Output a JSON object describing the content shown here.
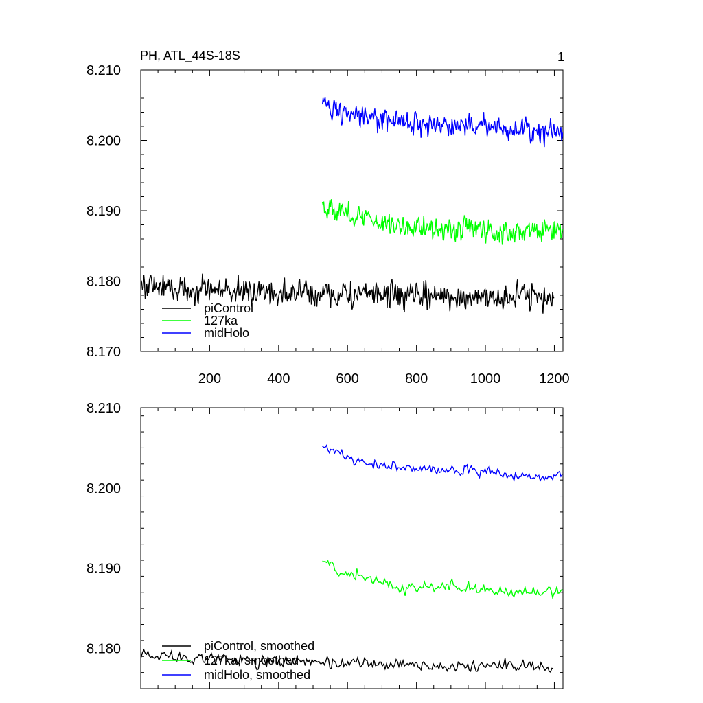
{
  "figure": {
    "title": "PH, ATL_44S-18S",
    "panel_number": "1"
  },
  "chart_data": [
    {
      "type": "line",
      "title": "PH, ATL_44S-18S",
      "xlabel": "",
      "ylabel": "",
      "xlim": [
        0,
        1225
      ],
      "ylim": [
        8.17,
        8.21
      ],
      "x_ticks": [
        200,
        400,
        600,
        800,
        1000,
        1200
      ],
      "y_ticks": [
        8.17,
        8.18,
        8.19,
        8.2,
        8.21
      ],
      "y_tick_labels": [
        "8.170",
        "8.180",
        "8.190",
        "8.200",
        "8.210"
      ],
      "x_tick_labels": [
        "200",
        "400",
        "600",
        "800",
        "1000",
        "1200"
      ],
      "legend_position": "bottom-left",
      "series": [
        {
          "name": "piControl",
          "color": "#000000",
          "x_start": 1,
          "x_end": 1200,
          "step": 2,
          "anchors_x": [
            1,
            100,
            300,
            500,
            700,
            900,
            1100,
            1200
          ],
          "anchors_y": [
            8.1795,
            8.179,
            8.1785,
            8.1782,
            8.178,
            8.1778,
            8.1778,
            8.1777
          ],
          "noise": 0.0013
        },
        {
          "name": "127ka",
          "color": "#00ff00",
          "x_start": 527,
          "x_end": 1225,
          "step": 2,
          "anchors_x": [
            527,
            560,
            650,
            750,
            900,
            1000,
            1100,
            1225
          ],
          "anchors_y": [
            8.1912,
            8.19,
            8.189,
            8.1878,
            8.1875,
            8.1872,
            8.187,
            8.1872
          ],
          "noise": 0.0011
        },
        {
          "name": "midHolo",
          "color": "#0000ff",
          "x_start": 527,
          "x_end": 1225,
          "step": 2,
          "anchors_x": [
            527,
            560,
            650,
            750,
            900,
            1000,
            1100,
            1225
          ],
          "anchors_y": [
            8.2055,
            8.2045,
            8.203,
            8.2025,
            8.2022,
            8.202,
            8.2015,
            8.2013
          ],
          "noise": 0.0011
        }
      ]
    },
    {
      "type": "line",
      "title": "",
      "xlabel": "",
      "ylabel": "",
      "xlim": [
        0,
        1225
      ],
      "ylim": [
        8.175,
        8.21
      ],
      "x_ticks": [
        200,
        400,
        600,
        800,
        1000,
        1200
      ],
      "y_ticks": [
        8.18,
        8.19,
        8.2,
        8.21
      ],
      "y_tick_labels": [
        "8.180",
        "8.190",
        "8.200",
        "8.210"
      ],
      "legend_position": "bottom-left",
      "series": [
        {
          "name": "piControl, smoothed",
          "color": "#000000",
          "x_start": 1,
          "x_end": 1200,
          "step": 4,
          "anchors_x": [
            1,
            100,
            300,
            500,
            700,
            900,
            1100,
            1200
          ],
          "anchors_y": [
            8.1795,
            8.179,
            8.1785,
            8.1782,
            8.178,
            8.1778,
            8.1778,
            8.1775
          ],
          "noise": 0.0005
        },
        {
          "name": "127ka, smoothed",
          "color": "#00ff00",
          "x_start": 527,
          "x_end": 1225,
          "step": 4,
          "anchors_x": [
            527,
            560,
            650,
            750,
            900,
            1000,
            1100,
            1225
          ],
          "anchors_y": [
            8.191,
            8.19,
            8.189,
            8.1875,
            8.1878,
            8.1872,
            8.1868,
            8.1872
          ],
          "noise": 0.00045
        },
        {
          "name": "midHolo, smoothed",
          "color": "#0000ff",
          "x_start": 527,
          "x_end": 1225,
          "step": 4,
          "anchors_x": [
            527,
            560,
            650,
            750,
            900,
            1000,
            1100,
            1225
          ],
          "anchors_y": [
            8.2055,
            8.2045,
            8.203,
            8.2025,
            8.2022,
            8.202,
            8.2015,
            8.2015
          ],
          "noise": 0.00045
        }
      ]
    }
  ]
}
